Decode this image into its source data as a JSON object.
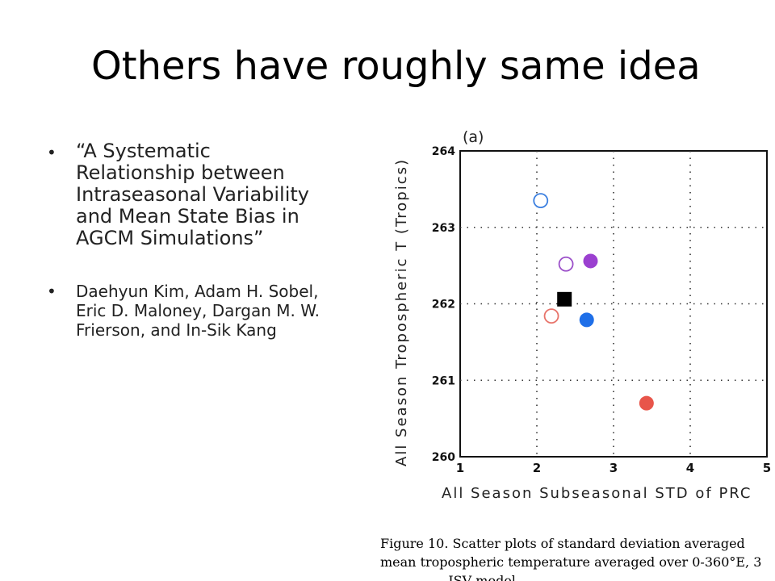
{
  "slide": {
    "title": "Others have roughly same idea",
    "bullets": [
      "“A Systematic Relationship between Intraseasonal Variability and Mean State Bias in AGCM Simulations”",
      "Daehyun Kim, Adam H. Sobel, Eric D. Maloney, Dargan M. W. Frierson, and In-Sik Kang"
    ]
  },
  "figure": {
    "panel_label": "(a)",
    "caption_lines": [
      "Figure 10. Scatter plots of standard deviation averaged",
      "mean tropospheric temperature averaged over 0-360°E, 3",
      "… … … … ISV model …"
    ]
  },
  "chart_data": {
    "type": "scatter",
    "xlabel": "All Season Subseasonal STD of PRC",
    "ylabel": "All Season Tropospheric T (Tropics)",
    "xlim": [
      1,
      5
    ],
    "ylim": [
      260,
      264
    ],
    "xticks": [
      "1",
      "2",
      "3",
      "4",
      "5"
    ],
    "yticks": [
      "260",
      "261",
      "262",
      "263",
      "264"
    ],
    "grid": true,
    "points": [
      {
        "x": 2.05,
        "y": 263.35,
        "marker": "circle-open",
        "color": "#3b7fe0"
      },
      {
        "x": 2.38,
        "y": 262.52,
        "marker": "circle-open",
        "color": "#9b4fc9"
      },
      {
        "x": 2.7,
        "y": 262.56,
        "marker": "circle-filled",
        "color": "#9b40d0"
      },
      {
        "x": 2.36,
        "y": 262.06,
        "marker": "square-filled",
        "color": "#000000"
      },
      {
        "x": 2.19,
        "y": 261.84,
        "marker": "circle-open",
        "color": "#e8736a"
      },
      {
        "x": 2.65,
        "y": 261.79,
        "marker": "circle-filled",
        "color": "#1f6fe8"
      },
      {
        "x": 3.43,
        "y": 260.7,
        "marker": "circle-filled",
        "color": "#e8554a"
      }
    ]
  }
}
